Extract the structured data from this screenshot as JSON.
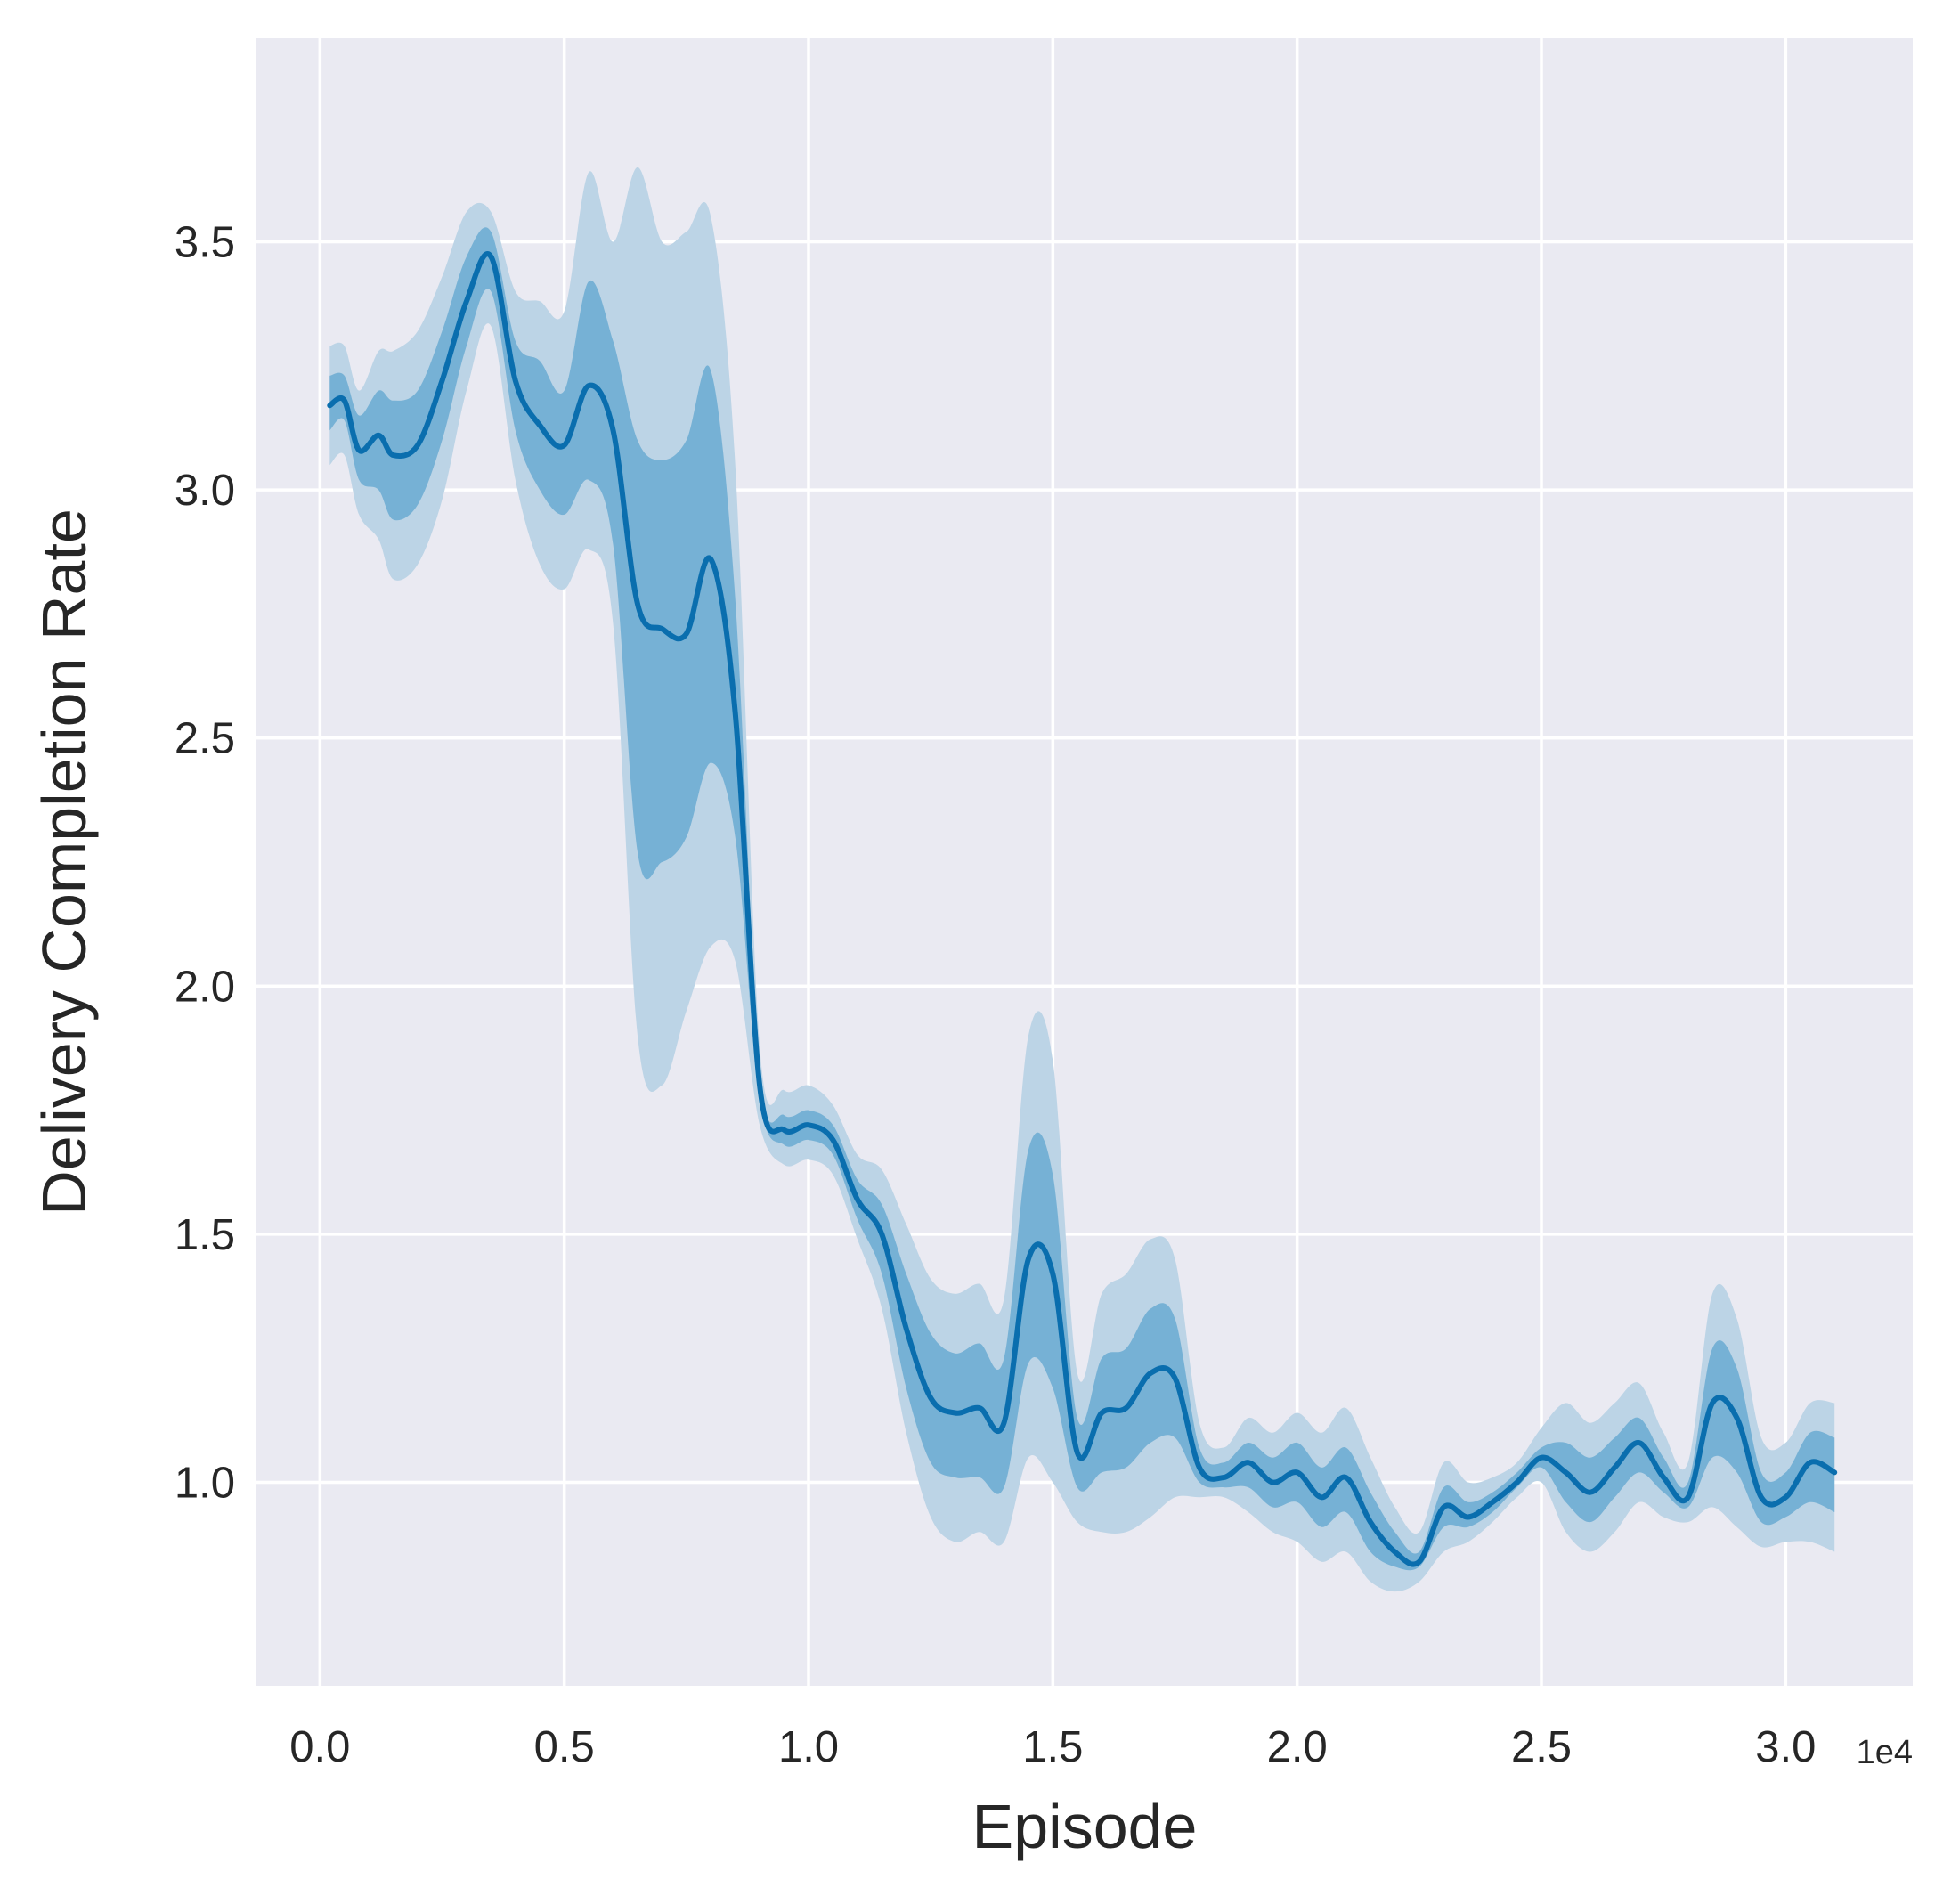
{
  "chart_data": {
    "type": "line",
    "title": "",
    "xlabel": "Episode",
    "ylabel": "Delivery Completion Rate",
    "x_offset_label": "1e4",
    "xlim": [
      -0.13,
      3.26
    ],
    "ylim": [
      0.59,
      3.91
    ],
    "grid": true,
    "legend": "none",
    "colors": {
      "background": "#eaeaf2",
      "grid": "#ffffff",
      "line": "#0a6eae",
      "band_outer": "#bcd4e6",
      "band_inner": "#6aaad1"
    },
    "x_ticks": [
      {
        "value": 0.0,
        "label": "0.0"
      },
      {
        "value": 0.5,
        "label": "0.5"
      },
      {
        "value": 1.0,
        "label": "1.0"
      },
      {
        "value": 1.5,
        "label": "1.5"
      },
      {
        "value": 2.0,
        "label": "2.0"
      },
      {
        "value": 2.5,
        "label": "2.5"
      },
      {
        "value": 3.0,
        "label": "3.0"
      }
    ],
    "y_ticks": [
      {
        "value": 1.0,
        "label": "1.0"
      },
      {
        "value": 1.5,
        "label": "1.5"
      },
      {
        "value": 2.0,
        "label": "2.0"
      },
      {
        "value": 2.5,
        "label": "2.5"
      },
      {
        "value": 3.0,
        "label": "3.0"
      },
      {
        "value": 3.5,
        "label": "3.5"
      }
    ],
    "series": [
      {
        "x": [
          0.02,
          0.05,
          0.08,
          0.12,
          0.15,
          0.2,
          0.25,
          0.3,
          0.35,
          0.4,
          0.45,
          0.5,
          0.55,
          0.6,
          0.65,
          0.7,
          0.75,
          0.8,
          0.85,
          0.9,
          0.95,
          1.0,
          1.05,
          1.1,
          1.15,
          1.2,
          1.25,
          1.3,
          1.35,
          1.4,
          1.45,
          1.5,
          1.55,
          1.6,
          1.65,
          1.7,
          1.75,
          1.8,
          1.85,
          1.9,
          1.95,
          2.0,
          2.05,
          2.1,
          2.15,
          2.2,
          2.25,
          2.3,
          2.35,
          2.4,
          2.45,
          2.5,
          2.55,
          2.6,
          2.65,
          2.7,
          2.75,
          2.8,
          2.85,
          2.9,
          2.95,
          3.0,
          3.05,
          3.1
        ],
        "y": [
          3.17,
          3.18,
          3.08,
          3.11,
          3.07,
          3.09,
          3.22,
          3.38,
          3.47,
          3.22,
          3.13,
          3.09,
          3.21,
          3.12,
          2.77,
          2.72,
          2.71,
          2.86,
          2.55,
          1.8,
          1.71,
          1.72,
          1.69,
          1.57,
          1.5,
          1.31,
          1.17,
          1.14,
          1.15,
          1.12,
          1.45,
          1.42,
          1.06,
          1.14,
          1.15,
          1.22,
          1.21,
          1.03,
          1.01,
          1.04,
          1.0,
          1.02,
          0.97,
          1.01,
          0.92,
          0.86,
          0.84,
          0.95,
          0.93,
          0.96,
          1.0,
          1.05,
          1.02,
          0.98,
          1.03,
          1.08,
          1.01,
          0.97,
          1.16,
          1.13,
          0.97,
          0.97,
          1.04,
          1.02
        ],
        "inner_lo": [
          3.12,
          3.14,
          3.02,
          3.0,
          2.94,
          2.97,
          3.1,
          3.29,
          3.4,
          3.12,
          3.0,
          2.95,
          3.02,
          2.89,
          2.27,
          2.25,
          2.3,
          2.45,
          2.3,
          1.77,
          1.68,
          1.69,
          1.66,
          1.53,
          1.42,
          1.19,
          1.04,
          1.01,
          1.01,
          0.99,
          1.24,
          1.19,
          0.99,
          1.02,
          1.03,
          1.08,
          1.09,
          1.0,
          0.99,
          0.99,
          0.95,
          0.96,
          0.91,
          0.94,
          0.86,
          0.83,
          0.83,
          0.91,
          0.91,
          0.94,
          0.99,
          1.03,
          0.96,
          0.92,
          0.97,
          1.02,
          0.98,
          0.95,
          1.05,
          1.02,
          0.92,
          0.93,
          0.96,
          0.94
        ],
        "inner_hi": [
          3.23,
          3.23,
          3.15,
          3.2,
          3.18,
          3.2,
          3.32,
          3.47,
          3.52,
          3.3,
          3.26,
          3.2,
          3.42,
          3.3,
          3.1,
          3.06,
          3.1,
          3.24,
          2.78,
          1.83,
          1.74,
          1.75,
          1.72,
          1.61,
          1.56,
          1.42,
          1.3,
          1.26,
          1.28,
          1.25,
          1.67,
          1.62,
          1.13,
          1.25,
          1.27,
          1.35,
          1.33,
          1.07,
          1.04,
          1.08,
          1.05,
          1.08,
          1.03,
          1.07,
          0.98,
          0.9,
          0.86,
          0.99,
          0.96,
          0.98,
          1.02,
          1.07,
          1.08,
          1.05,
          1.09,
          1.13,
          1.05,
          1.0,
          1.27,
          1.23,
          1.02,
          1.02,
          1.1,
          1.09
        ],
        "outer_lo": [
          3.05,
          3.07,
          2.95,
          2.9,
          2.82,
          2.85,
          2.98,
          3.2,
          3.33,
          3.02,
          2.85,
          2.8,
          2.88,
          2.73,
          1.9,
          1.8,
          1.95,
          2.08,
          2.05,
          1.72,
          1.64,
          1.65,
          1.62,
          1.49,
          1.35,
          1.1,
          0.93,
          0.88,
          0.9,
          0.88,
          1.05,
          1.0,
          0.92,
          0.9,
          0.9,
          0.93,
          0.97,
          0.97,
          0.97,
          0.94,
          0.9,
          0.88,
          0.84,
          0.86,
          0.8,
          0.78,
          0.8,
          0.86,
          0.88,
          0.92,
          0.97,
          1.0,
          0.9,
          0.86,
          0.9,
          0.96,
          0.93,
          0.92,
          0.95,
          0.91,
          0.87,
          0.88,
          0.88,
          0.86
        ],
        "outer_hi": [
          3.29,
          3.29,
          3.2,
          3.28,
          3.28,
          3.32,
          3.43,
          3.56,
          3.56,
          3.4,
          3.38,
          3.36,
          3.64,
          3.5,
          3.65,
          3.5,
          3.52,
          3.55,
          3.05,
          1.88,
          1.79,
          1.8,
          1.76,
          1.66,
          1.63,
          1.52,
          1.41,
          1.38,
          1.4,
          1.37,
          1.9,
          1.85,
          1.22,
          1.38,
          1.42,
          1.49,
          1.45,
          1.12,
          1.07,
          1.13,
          1.1,
          1.14,
          1.1,
          1.15,
          1.05,
          0.95,
          0.9,
          1.04,
          1.0,
          1.01,
          1.04,
          1.11,
          1.16,
          1.12,
          1.16,
          1.2,
          1.1,
          1.04,
          1.38,
          1.33,
          1.09,
          1.08,
          1.16,
          1.16
        ]
      }
    ]
  }
}
